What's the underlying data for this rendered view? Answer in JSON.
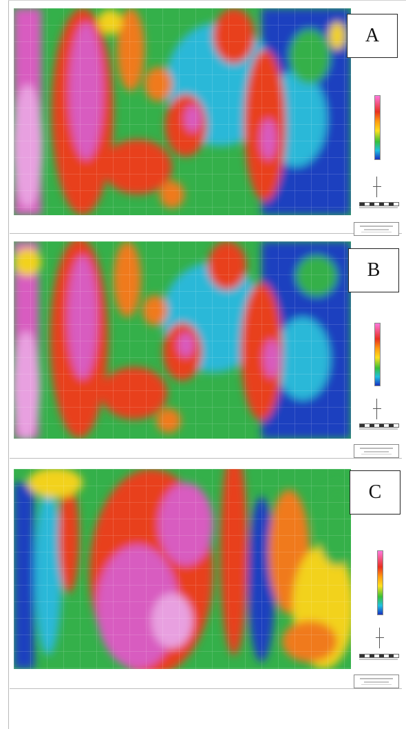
{
  "panels": [
    {
      "label": "A",
      "palette": "A"
    },
    {
      "label": "B",
      "palette": "B"
    },
    {
      "label": "C",
      "palette": "C"
    }
  ],
  "legend_colors": [
    "#ff77dd",
    "#e83020",
    "#ff9a10",
    "#ffe020",
    "#38c038",
    "#20c0e0",
    "#1830c0"
  ],
  "map_colors": {
    "magenta": "#d85cc0",
    "pink": "#e8a0e0",
    "red": "#e8401c",
    "orange": "#f07a1c",
    "yellow": "#f2d21e",
    "green": "#34b04a",
    "cyan": "#2ab8d8",
    "blue": "#1f3fbf"
  }
}
